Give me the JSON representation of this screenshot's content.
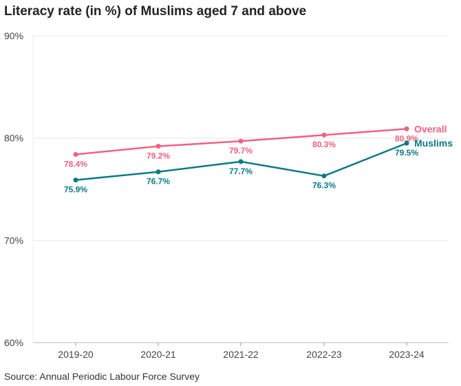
{
  "chart_data": {
    "type": "line",
    "title": "Literacy rate (in %) of Muslims aged 7 and above",
    "source": "Source: Annual Periodic Labour Force Survey",
    "categories": [
      "2019-20",
      "2020-21",
      "2021-22",
      "2022-23",
      "2023-24"
    ],
    "ylim": [
      60,
      90
    ],
    "yticks": [
      90,
      80,
      70,
      60
    ],
    "ytick_labels": [
      "90%",
      "80%",
      "70%",
      "60%"
    ],
    "grid": true,
    "series": [
      {
        "name": "Overall",
        "color": "#f0607f",
        "values": [
          78.4,
          79.2,
          79.7,
          80.3,
          80.9
        ],
        "labels": [
          "78.4%",
          "79.2%",
          "79.7%",
          "80.3%",
          "80.9%"
        ]
      },
      {
        "name": "Muslims",
        "color": "#0b7a87",
        "values": [
          75.9,
          76.7,
          77.7,
          76.3,
          79.5
        ],
        "labels": [
          "75.9%",
          "76.7%",
          "77.7%",
          "76.3%",
          "79.5%"
        ]
      }
    ]
  }
}
